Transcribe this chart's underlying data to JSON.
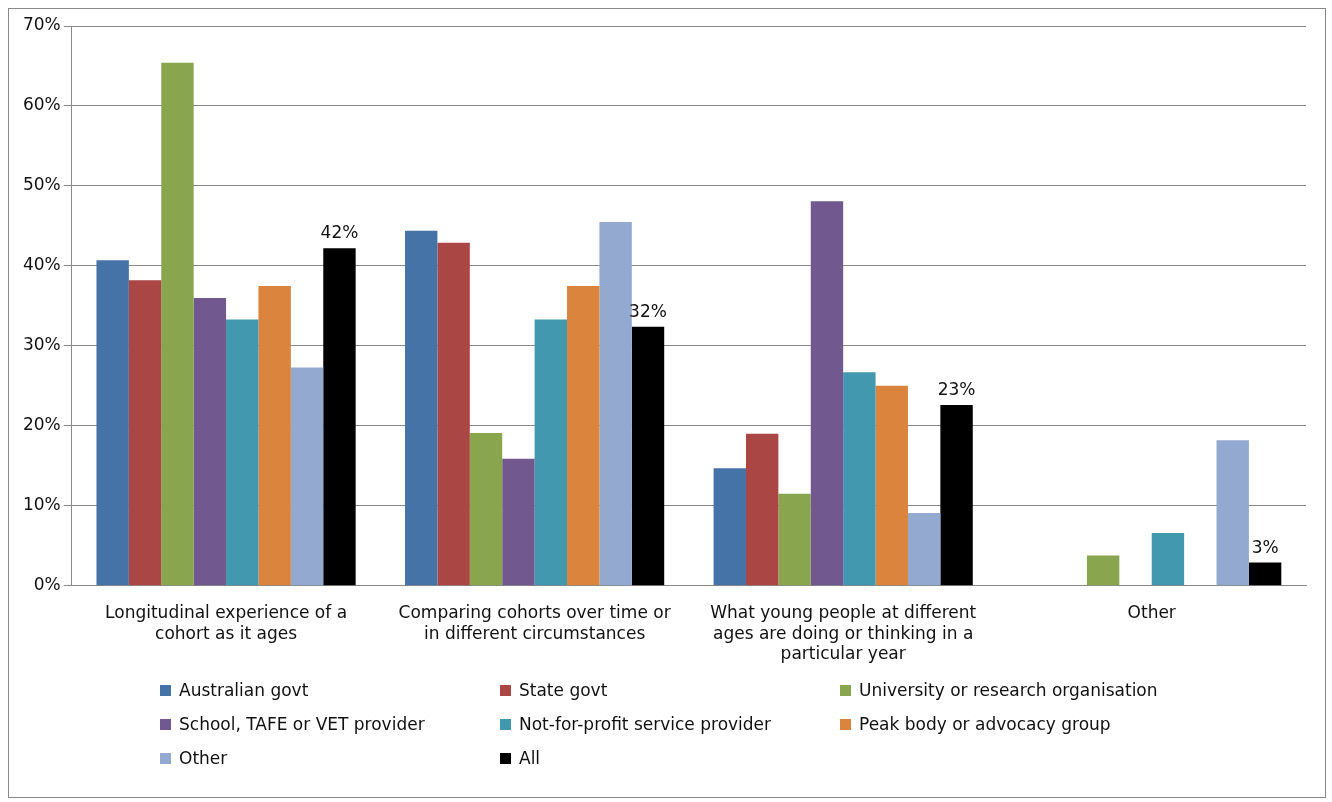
{
  "chart_data": {
    "type": "bar",
    "categories": [
      "Longitudinal experience of a cohort as it ages",
      "Comparing cohorts over time or in different circumstances",
      "What young people at different ages are doing or thinking in a particular year",
      "Other"
    ],
    "series": [
      {
        "name": "Australian govt",
        "color": "#4572a7",
        "values": [
          40.7,
          44.4,
          14.7,
          0
        ]
      },
      {
        "name": "State govt",
        "color": "#aa4643",
        "values": [
          38.2,
          42.9,
          19.0,
          0
        ]
      },
      {
        "name": "University or research organisation",
        "color": "#89a54e",
        "values": [
          65.4,
          19.1,
          11.5,
          3.8
        ]
      },
      {
        "name": "School, TAFE or VET provider",
        "color": "#71588f",
        "values": [
          36.0,
          15.9,
          48.1,
          0
        ]
      },
      {
        "name": "Not-for-profit service provider",
        "color": "#4198af",
        "values": [
          33.3,
          33.3,
          26.7,
          6.6
        ]
      },
      {
        "name": "Peak body or advocacy group",
        "color": "#db843d",
        "values": [
          37.5,
          37.5,
          25.0,
          0
        ]
      },
      {
        "name": "Other",
        "color": "#93a9cf",
        "values": [
          27.3,
          45.5,
          9.1,
          18.2
        ]
      },
      {
        "name": "All",
        "color": "#000000",
        "values": [
          42.2,
          32.4,
          22.6,
          2.9
        ],
        "value_labels": [
          "42%",
          "32%",
          "23%",
          "3%"
        ]
      }
    ],
    "ylim": [
      0,
      70
    ],
    "yticks": [
      {
        "value": 0,
        "label": "0%"
      },
      {
        "value": 10,
        "label": "10%"
      },
      {
        "value": 20,
        "label": "20%"
      },
      {
        "value": 30,
        "label": "30%"
      },
      {
        "value": 40,
        "label": "40%"
      },
      {
        "value": 50,
        "label": "50%"
      },
      {
        "value": 60,
        "label": "60%"
      },
      {
        "value": 70,
        "label": "70%"
      }
    ],
    "grid": "y",
    "legend": "bottom"
  }
}
